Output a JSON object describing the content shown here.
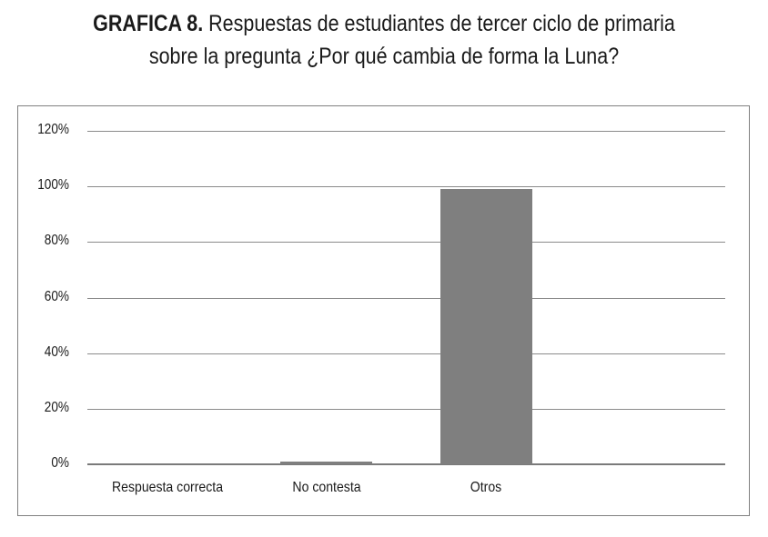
{
  "chart_data": {
    "type": "bar",
    "title_prefix": "GRAFICA 8.",
    "title_line1": "Respuestas de estudiantes de tercer ciclo de primaria",
    "title_line2": "sobre la pregunta ¿Por qué cambia de forma la Luna?",
    "categories": [
      "Respuesta correcta",
      "No contesta",
      "Otros"
    ],
    "values": [
      0,
      1,
      99
    ],
    "value_unit": "%",
    "xlabel": "",
    "ylabel": "",
    "ylim": [
      0,
      120
    ],
    "yticks": [
      "0%",
      "20%",
      "40%",
      "60%",
      "80%",
      "100%",
      "120%"
    ],
    "grid": true,
    "legend": "none",
    "bar_color": "#7f7f7f"
  }
}
